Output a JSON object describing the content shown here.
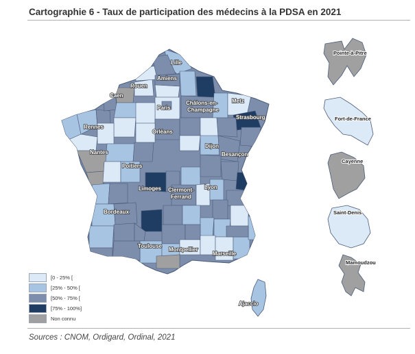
{
  "title": "Cartographie 6 - Taux de participation des médecins à la PDSA en 2021",
  "source": "Sources : CNOM, Ordigard, Ordinal, 2021",
  "colors": {
    "c0_25": "#dceaf7",
    "c25_50": "#a7c4e2",
    "c50_75": "#7c8eac",
    "c75_100": "#1f3d63",
    "unknown": "#a0a0a0",
    "border": "#4a5a78"
  },
  "legend": [
    {
      "label": "[0 - 25% [",
      "color": "#dceaf7"
    },
    {
      "label": "[25% - 50% [",
      "color": "#a7c4e2"
    },
    {
      "label": "[50% - 75% [",
      "color": "#7c8eac"
    },
    {
      "label": "[75% - 100%]",
      "color": "#1f3d63"
    },
    {
      "label": "Non connu",
      "color": "#a0a0a0"
    }
  ],
  "cities": {
    "lille": "Lille",
    "amiens": "Amiens",
    "rouen": "Rouen",
    "caen": "Caen",
    "paris": "Paris",
    "chalons1": "Châlons-en-",
    "chalons2": "Champagne",
    "metz": "Metz",
    "strasbourg": "Strasbourg",
    "rennes": "Rennes",
    "orleans": "Orléans",
    "nantes": "Nantes",
    "dijon": "Dijon",
    "besancon": "Besançon",
    "poitiers": "Poitiers",
    "limoges": "Limoges",
    "clermont1": "Clermont-",
    "clermont2": "Ferrand",
    "lyon": "Lyon",
    "bordeaux": "Bordeaux",
    "toulouse": "Toulouse",
    "montpellier": "Montpellier",
    "marseille": "Marseille",
    "ajaccio": "Ajaccio"
  },
  "overseas": {
    "guadeloupe": "Pointe-à-Pitre",
    "martinique": "Fort-de-France",
    "guyane": "Cayenne",
    "reunion": "Saint-Denis",
    "mayotte": "Mamoudzou"
  }
}
